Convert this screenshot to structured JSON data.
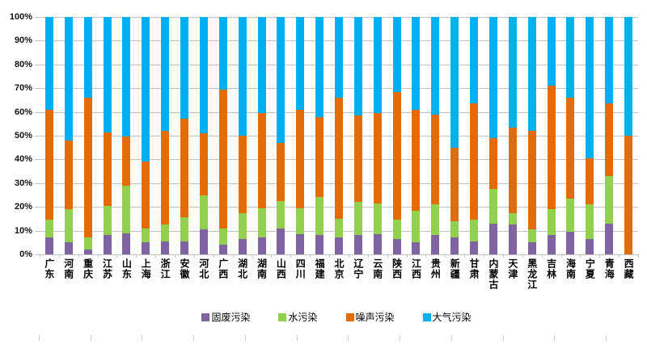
{
  "chart_data": {
    "type": "bar",
    "stacked": true,
    "percent": true,
    "title": "",
    "xlabel": "",
    "ylabel": "",
    "ylim": [
      0,
      100
    ],
    "y_tick_step": 10,
    "y_tick_suffix": "%",
    "grid": true,
    "legend_position": "bottom",
    "categories": [
      "广东",
      "河南",
      "重庆",
      "江苏",
      "山东",
      "上海",
      "浙江",
      "安徽",
      "河北",
      "广西",
      "湖北",
      "湖南",
      "山西",
      "四川",
      "福建",
      "北京",
      "辽宁",
      "云南",
      "陕西",
      "江西",
      "贵州",
      "新疆",
      "甘肃",
      "内蒙古",
      "天津",
      "黑龙江",
      "吉林",
      "海南",
      "宁夏",
      "青海",
      "西藏"
    ],
    "series": [
      {
        "name": "固废污染",
        "color": "#8064A2",
        "values": [
          7,
          5,
          2,
          8,
          9,
          5,
          5.5,
          5.5,
          10.5,
          4,
          6.5,
          7,
          11,
          8.5,
          8,
          7,
          8,
          8.5,
          6.5,
          5,
          8,
          7,
          5.5,
          13,
          12.5,
          5,
          8,
          9.5,
          6.5,
          13,
          0
        ]
      },
      {
        "name": "水污染",
        "color": "#92D050",
        "values": [
          7.5,
          14,
          5,
          12.5,
          20,
          6,
          7,
          10,
          14.5,
          7,
          11,
          12.5,
          11.5,
          11,
          16,
          8,
          14,
          13,
          8,
          13.5,
          13,
          7,
          9,
          14.5,
          5,
          5.5,
          11,
          14,
          14.5,
          20,
          0
        ]
      },
      {
        "name": "噪声污染",
        "color": "#E36C09",
        "values": [
          46.5,
          29,
          59,
          31,
          20.5,
          28,
          39.5,
          41.5,
          26,
          58.5,
          32.5,
          40,
          24.5,
          41.5,
          34,
          51,
          36.5,
          38,
          54,
          42.5,
          38,
          31,
          49,
          21.5,
          36,
          41.5,
          52,
          42.5,
          19.5,
          30.5,
          50
        ]
      },
      {
        "name": "大气污染",
        "color": "#00B0F0",
        "values": [
          39,
          52,
          34,
          48.5,
          50.5,
          61,
          48,
          43,
          49,
          30.5,
          50,
          40.5,
          53,
          39,
          42,
          34,
          41.5,
          40.5,
          31.5,
          39,
          41,
          55,
          36.5,
          51,
          46.5,
          48,
          29,
          34,
          59.5,
          36.5,
          50
        ]
      }
    ]
  }
}
